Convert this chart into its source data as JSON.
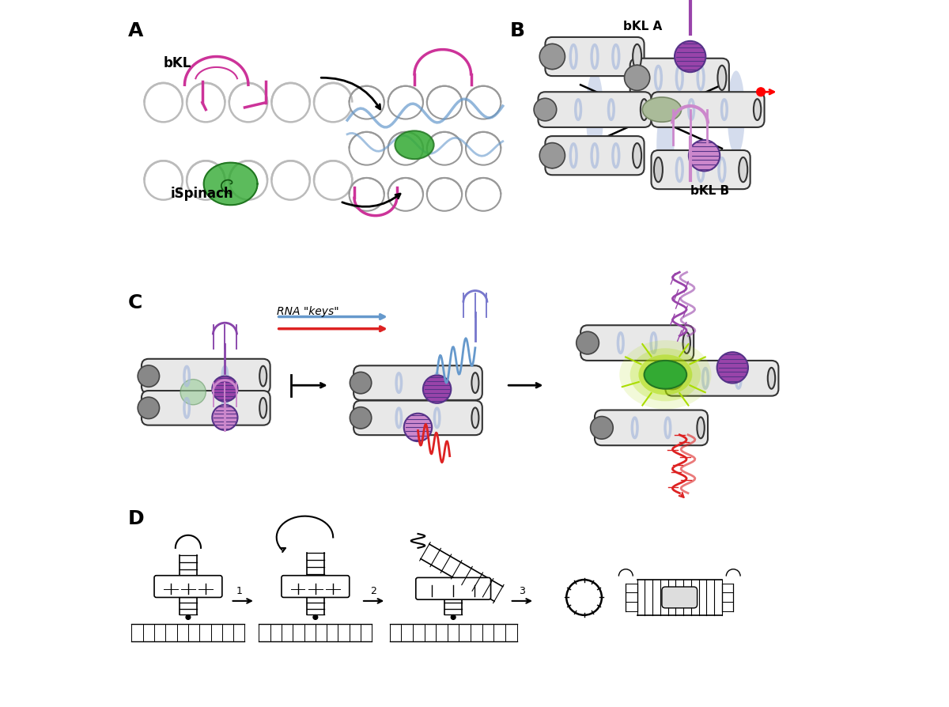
{
  "panel_labels": [
    "A",
    "B",
    "C",
    "D"
  ],
  "panel_label_fontsize": 18,
  "panel_label_fontweight": "bold",
  "background_color": "#ffffff",
  "text_bKL": "bKL",
  "text_iSpinach": "iSpinach",
  "text_bKL_A": "bKL A",
  "text_bKL_B": "bKL B",
  "text_RNA_keys": "RNA \"keys\"",
  "colors": {
    "magenta": "#CC3399",
    "green": "#33AA33",
    "blue": "#6699CC",
    "light_blue": "#AABBDD",
    "gray": "#888888",
    "light_gray": "#CCCCCC",
    "dark_gray": "#555555",
    "purple": "#8844AA",
    "light_purple": "#CC88CC",
    "red": "#DD2222",
    "yellow_green": "#AADD00",
    "light_green": "#99BB99",
    "orange": "#DDAA44",
    "black": "#000000",
    "white": "#ffffff"
  },
  "figsize": [
    12.0,
    8.94
  ],
  "dpi": 100
}
